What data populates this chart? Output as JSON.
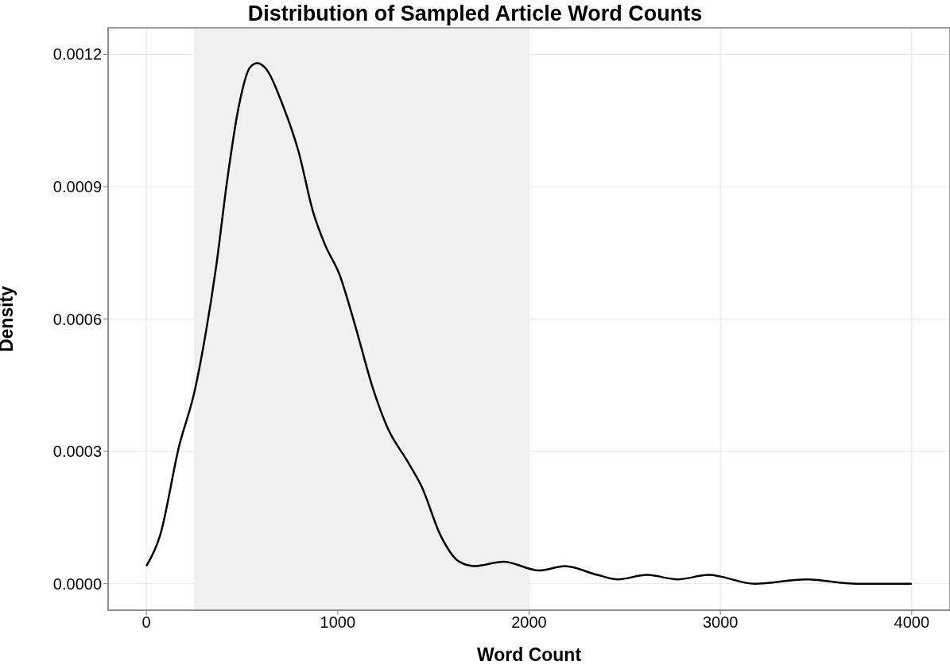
{
  "chart_data": {
    "type": "line",
    "title": "Distribution of Sampled Article Word Counts",
    "xlabel": "Word Count",
    "ylabel": "Density",
    "x": [
      0,
      72,
      170,
      254,
      307,
      365,
      424,
      482,
      541,
      580,
      619,
      717,
      795,
      873,
      932,
      1010,
      1088,
      1186,
      1264,
      1361,
      1439,
      1537,
      1635,
      1714,
      1866,
      2054,
      2187,
      2357,
      2464,
      2616,
      2777,
      2938,
      3179,
      3446,
      3714,
      4000
    ],
    "series": [
      {
        "color": "#000000",
        "values": [
          4e-05,
          0.00011,
          0.00031,
          0.00044,
          0.00056,
          0.00072,
          0.00092,
          0.00108,
          0.00117,
          0.00118,
          0.00117,
          0.00108,
          0.00098,
          0.00084,
          0.00077,
          0.0007,
          0.00059,
          0.00044,
          0.00035,
          0.00028,
          0.00022,
          0.00011,
          5e-05,
          4e-05,
          5e-05,
          3e-05,
          4e-05,
          2e-05,
          1e-05,
          2e-05,
          1e-05,
          2e-05,
          0.0,
          1e-05,
          0.0,
          0.0
        ]
      }
    ],
    "xlim": [
      -200,
      4200
    ],
    "ylim": [
      -6e-05,
      0.00126
    ],
    "xticks": [
      0,
      1000,
      2000,
      3000,
      4000
    ],
    "yticks": [
      {
        "value": 0,
        "label": "0.0000"
      },
      0.0003,
      0.0006,
      0.0009,
      0.0012
    ],
    "bands": [
      {
        "axis": "x",
        "from": 250,
        "to": 2000,
        "color": "#f0f0f0"
      }
    ],
    "grid": true,
    "marker": "none",
    "line_style": "solid"
  }
}
